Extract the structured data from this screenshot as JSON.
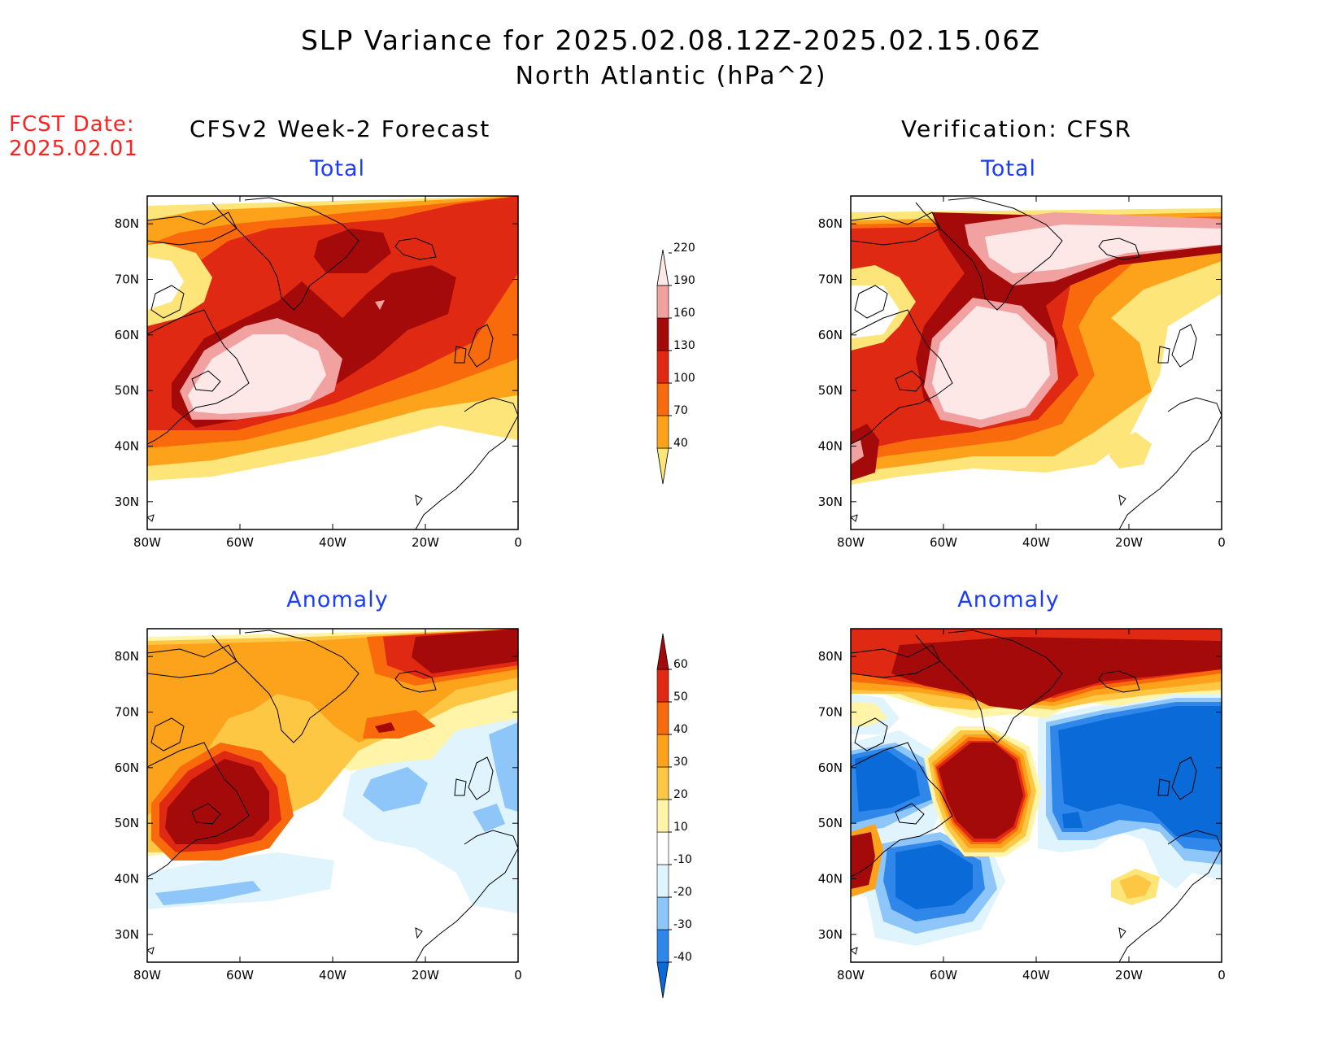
{
  "title": {
    "line1": "SLP Variance for 2025.02.08.12Z-2025.02.15.06Z",
    "line2": "North Atlantic (hPa^2)"
  },
  "forecast_date": {
    "label": "FCST Date:",
    "value": "2025.02.01"
  },
  "columns": {
    "left": "CFSv2 Week-2 Forecast",
    "right": "Verification: CFSR"
  },
  "panels": {
    "top_left": "Total",
    "top_right": "Total",
    "bottom_left": "Anomaly",
    "bottom_right": "Anomaly"
  },
  "axes": {
    "lon_ticks": [
      "80W",
      "60W",
      "40W",
      "20W",
      "0"
    ],
    "lat_ticks": [
      "30N",
      "40N",
      "50N",
      "60N",
      "70N",
      "80N"
    ],
    "lon_range": [
      -80,
      0
    ],
    "lat_range": [
      25,
      85
    ]
  },
  "colorbars": {
    "total": {
      "levels": [
        "40",
        "70",
        "100",
        "130",
        "160",
        "190",
        "220"
      ],
      "colors": [
        "#fde57a",
        "#fda21b",
        "#f86a0b",
        "#e02912",
        "#a50a0a",
        "#f2a1a1",
        "#fde7e7"
      ]
    },
    "anomaly": {
      "levels": [
        "-40",
        "-30",
        "-20",
        "-10",
        "10",
        "20",
        "30",
        "40",
        "50",
        "60"
      ],
      "colors": [
        "#0a6ad8",
        "#2f87ea",
        "#8fc6fa",
        "#dff4fd",
        "#ffffff",
        "#fff4a8",
        "#fdc743",
        "#fda21b",
        "#f86a0b",
        "#e02912",
        "#a50a0a"
      ]
    }
  },
  "colors": {
    "title_text": "#000000",
    "forecast_date_text": "#ff2020",
    "panel_subtitle_text": "#1a3cff"
  }
}
